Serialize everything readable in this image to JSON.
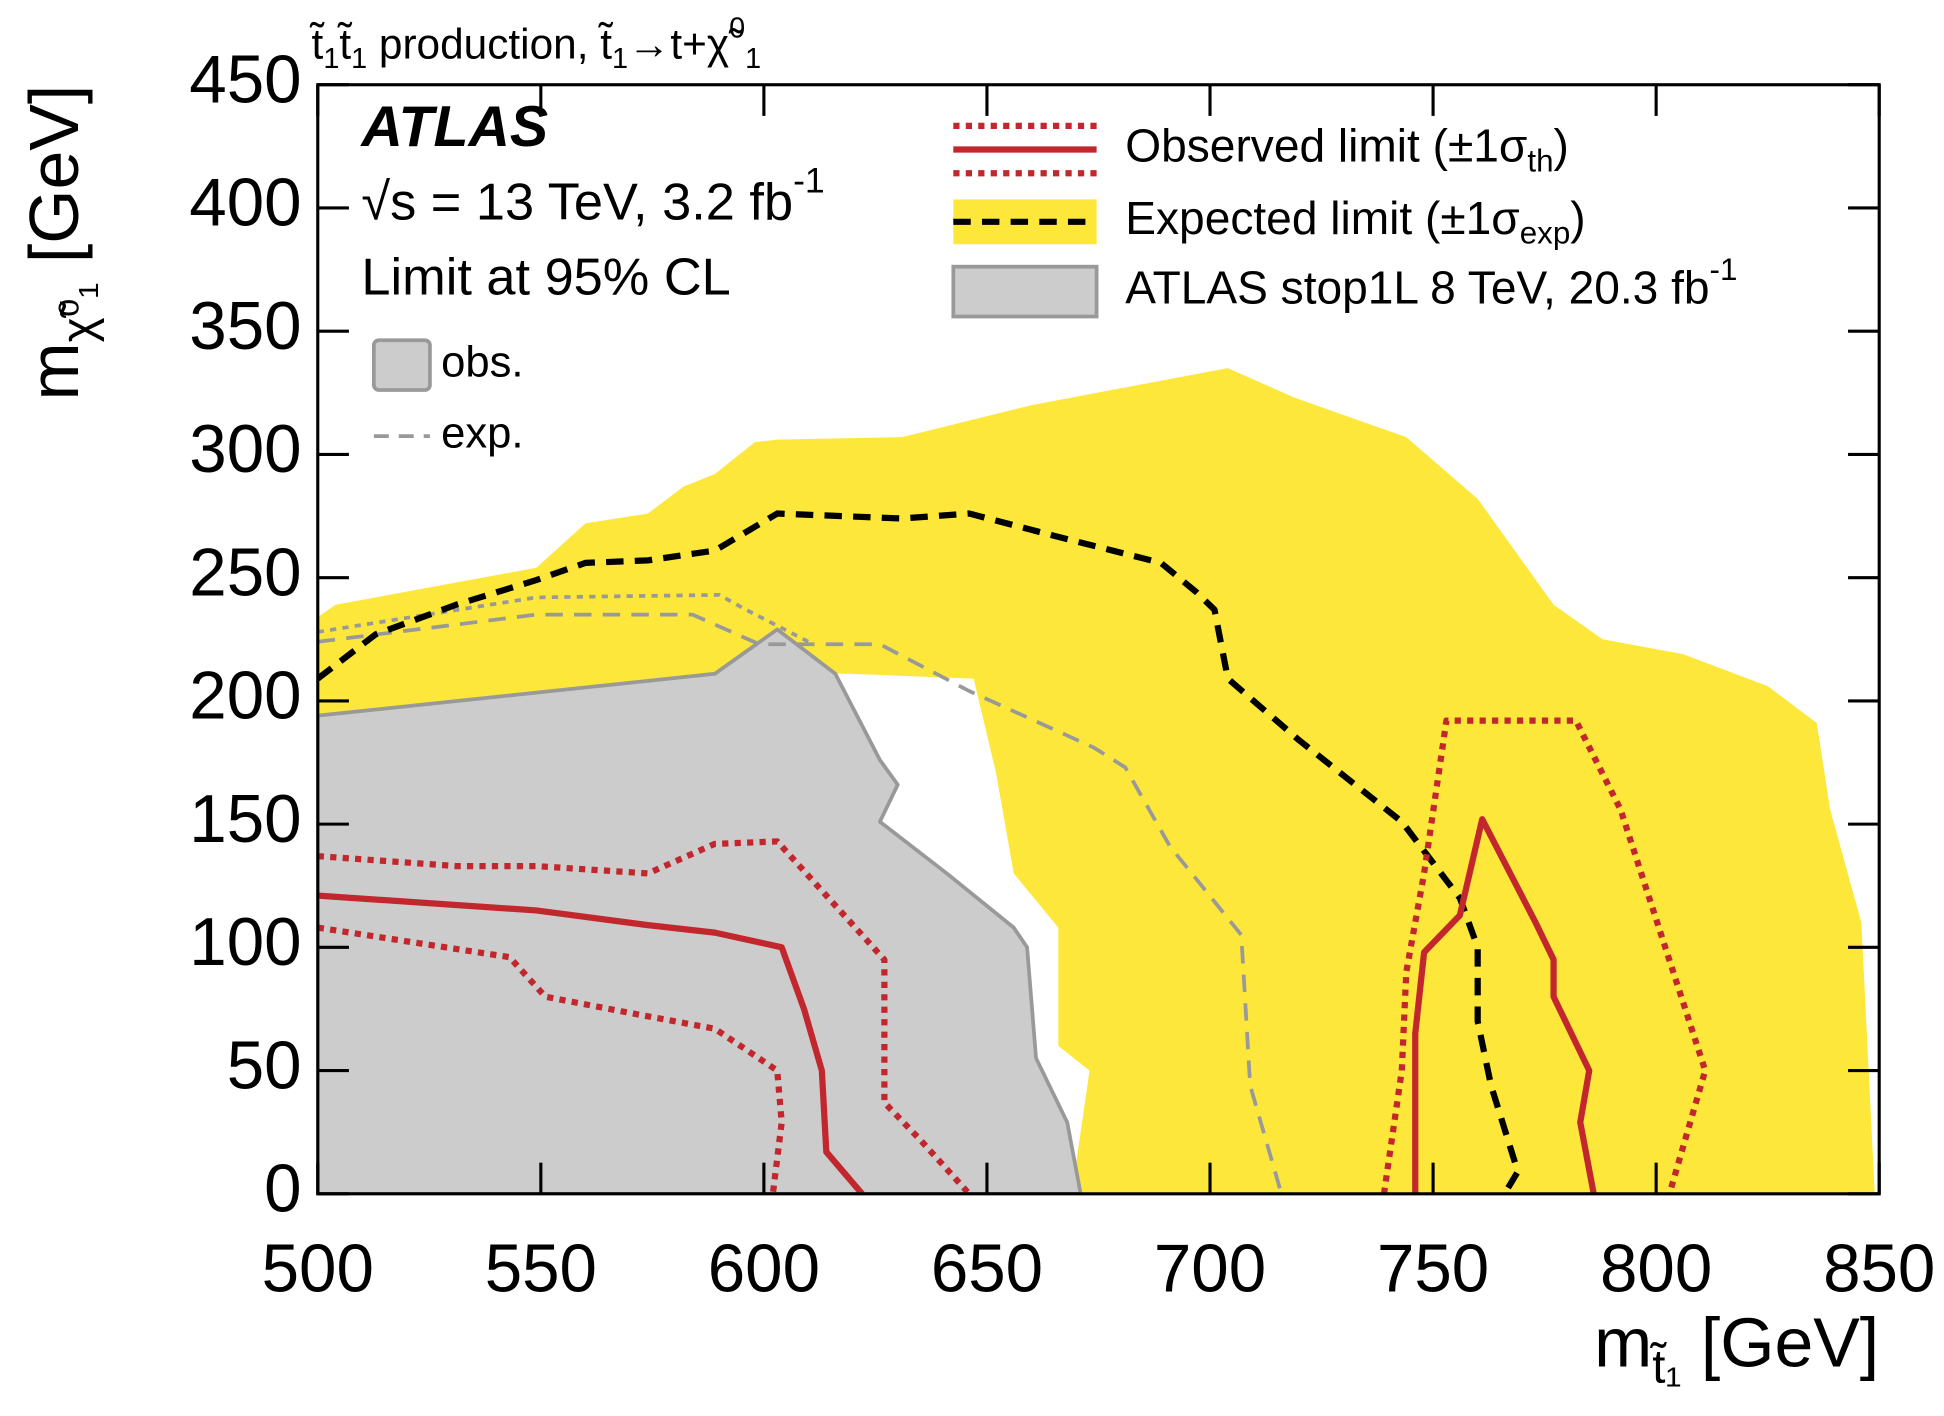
{
  "chart_data": {
    "type": "contour",
    "title": [
      {
        "text": "t̃"
      },
      {
        "text": "1",
        "pos": "sub"
      },
      {
        "text": "t̃"
      },
      {
        "text": "1",
        "pos": "sub"
      },
      {
        "text": " production, t̃"
      },
      {
        "text": "1",
        "pos": "sub"
      },
      {
        "text": "→t+χ̃"
      },
      {
        "text": "0",
        "pos": "sup"
      },
      {
        "text": "1",
        "pos": "sub"
      }
    ],
    "x_label": [
      {
        "text": "m"
      },
      {
        "text": "t̃₁",
        "pos": "sub"
      },
      {
        "text": " [GeV]"
      }
    ],
    "y_label": [
      {
        "text": "m"
      },
      {
        "text": "χ̃⁰₁",
        "pos": "sub"
      },
      {
        "text": " [GeV]"
      }
    ],
    "annotations": [
      [
        {
          "text": "ATLAS"
        }
      ],
      [
        {
          "text": "√s = 13 TeV, 3.2 fb"
        },
        {
          "text": "-1",
          "pos": "sup"
        }
      ],
      [
        {
          "text": "Limit at 95% CL"
        }
      ]
    ],
    "xlim": [
      500,
      850
    ],
    "ylim": [
      0,
      450
    ],
    "xticks": [
      500,
      550,
      600,
      650,
      700,
      750,
      800,
      850
    ],
    "yticks": [
      0,
      50,
      100,
      150,
      200,
      250,
      300,
      350,
      400,
      450
    ],
    "legend": [
      [
        {
          "text": "Observed limit (±1σ"
        },
        {
          "text": "th",
          "pos": "sub"
        },
        {
          "text": ")"
        }
      ],
      [
        {
          "text": "Expected limit (±1σ"
        },
        {
          "text": "exp",
          "pos": "sub"
        },
        {
          "text": ")"
        }
      ],
      [
        {
          "text": "ATLAS stop1L 8 TeV, 20.3 fb"
        },
        {
          "text": "-1",
          "pos": "sup"
        }
      ]
    ],
    "inset_legend": [
      "obs.",
      "exp."
    ],
    "series": [
      {
        "kind": "area",
        "color": "#fde73a",
        "x": [
          500,
          504,
          549,
          560,
          574,
          582,
          589,
          598,
          603,
          631,
          660,
          704,
          719,
          744,
          760,
          777,
          788,
          806,
          825,
          836,
          839,
          846,
          849,
          669,
          673,
          666,
          666,
          656,
          652,
          649,
          647,
          619,
          589,
          500
        ],
        "values": [
          234,
          239,
          254,
          272,
          276,
          287,
          292,
          305,
          306,
          307,
          320,
          335,
          323,
          307,
          282,
          239,
          225,
          219,
          206,
          191,
          156,
          110,
          0,
          0,
          50,
          60,
          108,
          130,
          171,
          194,
          209,
          211,
          211,
          192
        ]
      },
      {
        "kind": "area",
        "color": "#cccccc",
        "stroke": "#999999",
        "x": [
          500,
          589,
          603,
          616,
          626,
          630,
          626,
          641,
          656,
          659,
          661,
          668,
          671,
          500
        ],
        "values": [
          194,
          211,
          229,
          211,
          176,
          166,
          151,
          130,
          108,
          100,
          55,
          29,
          0,
          0
        ]
      },
      {
        "kind": "line",
        "color": "#999999",
        "dash": "dashed",
        "x": [
          500,
          549,
          584,
          599,
          626,
          646,
          674,
          681,
          691,
          707,
          709,
          716
        ],
        "values": [
          224,
          235,
          235,
          223,
          223,
          204,
          181,
          173,
          141,
          105,
          44,
          0
        ]
      },
      {
        "kind": "line",
        "color": "#999999",
        "dash": "dotted",
        "x": [
          500,
          549,
          590,
          596,
          610
        ],
        "values": [
          228,
          242,
          243,
          237,
          224
        ]
      },
      {
        "kind": "line",
        "color": "#000000",
        "dash": "dashed",
        "x": [
          500,
          513,
          531,
          549,
          560,
          574,
          589,
          603,
          631,
          646,
          665,
          689,
          697,
          701,
          704,
          720,
          743,
          756,
          760,
          760,
          763,
          769,
          766
        ],
        "values": [
          209,
          227,
          239,
          249,
          256,
          257,
          261,
          276,
          274,
          276,
          267,
          256,
          244,
          237,
          209,
          184,
          151,
          120,
          100,
          70,
          44,
          9,
          0
        ]
      },
      {
        "kind": "line",
        "color": "#c1272d",
        "dash": "solid",
        "x": [
          500,
          549,
          574,
          589,
          604,
          609,
          613,
          614,
          622,
          null,
          746,
          746,
          748,
          756,
          761,
          773,
          777,
          777,
          785,
          783,
          786
        ],
        "values": [
          121,
          115,
          109,
          106,
          100,
          75,
          50,
          17,
          0,
          null,
          0,
          65,
          98,
          113,
          152,
          110,
          95,
          80,
          50,
          29,
          0
        ]
      },
      {
        "kind": "line",
        "color": "#c1272d",
        "dash": "dotted",
        "x": [
          500,
          531,
          549,
          574,
          589,
          603,
          613,
          627,
          627,
          635,
          646,
          null,
          739,
          743,
          744,
          748,
          753,
          782,
          792,
          811,
          803
        ],
        "values": [
          137,
          133,
          133,
          130,
          142,
          143,
          123,
          95,
          37,
          22,
          0,
          null,
          0,
          50,
          90,
          130,
          192,
          192,
          156,
          50,
          0
        ]
      },
      {
        "kind": "line",
        "color": "#c1272d",
        "dash": "dotted",
        "x": [
          500,
          543,
          551,
          574,
          589,
          603,
          604,
          602
        ],
        "values": [
          108,
          96,
          80,
          72,
          67,
          50,
          29,
          0
        ]
      }
    ]
  }
}
